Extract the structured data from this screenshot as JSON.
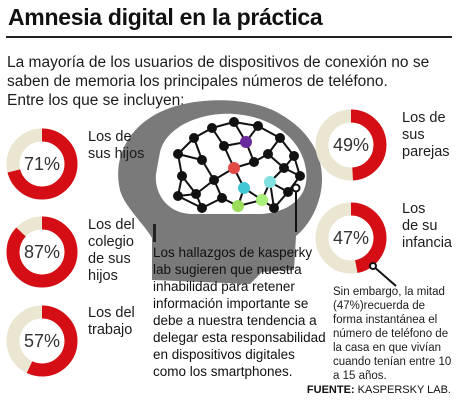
{
  "title": "Amnesia digital en la práctica",
  "intro": "La mayoría de los usuarios de dispositivos de conexión no se saben de memoria los principales números de teléfono.",
  "intro2": "Entre los que se incluyen:",
  "finding": "Los hallazgos de kasperky lab sugieren que nuestra inhabilidad para retener información importante se debe a nuestra tendencia a delegar esta responsabilidad en dispositivos digitales como los smartphones.",
  "note": "Sin embargo, la mitad (47%)recuerda de forma instantánea el número de teléfono de la casa en que vivían cuando tenían entre 10 a 15 años.",
  "source": {
    "label": "FUENTE:",
    "value": "KASPERSKY LAB."
  },
  "colors": {
    "accent": "#d40e14",
    "track": "#ebe6d2",
    "head": "#7a7a7a",
    "node": "#111111"
  },
  "chart_data": {
    "type": "pie",
    "categories": [
      "Los de sus hijos",
      "Los del colegio de sus hijos",
      "Los del trabajo",
      "Los de sus parejas",
      "Los de su infancia"
    ],
    "values": [
      71,
      87,
      57,
      49,
      47
    ],
    "value_labels": [
      "71%",
      "87%",
      "57%",
      "49%",
      "47%"
    ],
    "label_lines": [
      [
        "Los de",
        "sus hijos"
      ],
      [
        "Los del",
        "colegio",
        "de sus",
        "hijos"
      ],
      [
        "Los del",
        "trabajo"
      ],
      [
        "Los de",
        "sus",
        "parejas"
      ],
      [
        "Los",
        "de su",
        "infancia"
      ]
    ],
    "ylim": [
      0,
      100
    ]
  }
}
